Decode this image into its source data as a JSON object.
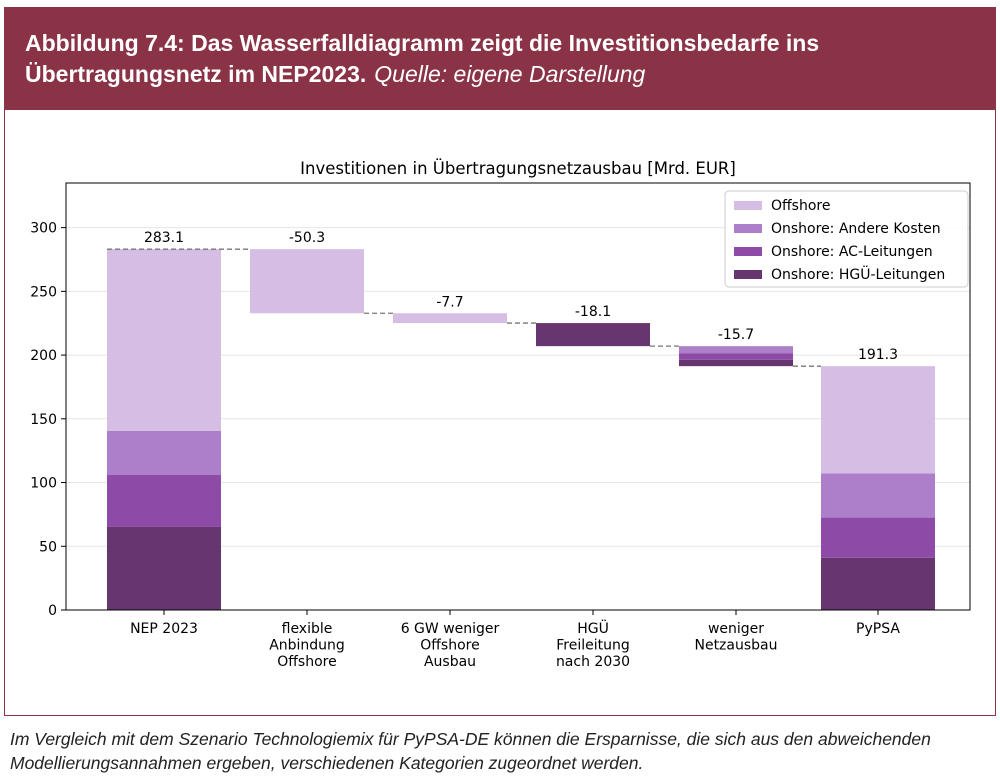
{
  "figure": {
    "title_bold": "Abbildung 7.4: Das Wasserfalldiagramm zeigt die Investitionsbedarfe ins Übertragungsnetz im NEP2023.",
    "source": "Quelle: eigene Darstellung",
    "caption": "Im Vergleich mit dem Szenario Technologiemix für PyPSA-DE können die Ersparnisse, die sich aus den abweichenden Modellierungsannahmen ergeben, verschiedenen Kategorien zugeordnet werden."
  },
  "chart_data": {
    "type": "bar",
    "subtype": "waterfall-stacked",
    "title": "Investitionen in Übertragungsnetzausbau [Mrd. EUR]",
    "xlabel": "",
    "ylabel": "",
    "ylim": [
      0,
      335
    ],
    "yticks": [
      0,
      50,
      100,
      150,
      200,
      250,
      300
    ],
    "grid": true,
    "legend_position": "top-right",
    "categories": [
      [
        "NEP 2023"
      ],
      [
        "flexible",
        "Anbindung",
        "Offshore"
      ],
      [
        "6 GW weniger",
        "Offshore",
        "Ausbau"
      ],
      [
        "HGÜ",
        "Freileitung",
        "nach 2030"
      ],
      [
        "weniger",
        "Netzausbau"
      ],
      [
        "PyPSA"
      ]
    ],
    "series": [
      {
        "name": "Onshore: HGÜ-Leitungen",
        "color": "#673670",
        "values": [
          65.4,
          0,
          0,
          18.1,
          5.0,
          41.0
        ]
      },
      {
        "name": "Onshore: AC-Leitungen",
        "color": "#8d4aa6",
        "values": [
          40.5,
          0,
          0,
          0,
          5.2,
          31.5
        ]
      },
      {
        "name": "Onshore: Andere Kosten",
        "color": "#ad7ec9",
        "values": [
          34.7,
          0,
          0,
          0,
          5.5,
          34.7
        ]
      },
      {
        "name": "Offshore",
        "color": "#d6bde3",
        "values": [
          142.5,
          50.3,
          7.7,
          0,
          0,
          84.1
        ]
      }
    ],
    "bar_bases": [
      0,
      232.8,
      225.1,
      207.0,
      191.3,
      0
    ],
    "bar_labels": [
      "283.1",
      "-50.3",
      "-7.7",
      "-18.1",
      "-15.7",
      "191.3"
    ],
    "bar_tops": [
      283.1,
      283.1,
      232.8,
      225.1,
      207.0,
      191.3
    ],
    "connectors": [
      283.1,
      232.8,
      225.1,
      207.0,
      191.3
    ],
    "legend_order": [
      "Offshore",
      "Onshore: Andere Kosten",
      "Onshore: AC-Leitungen",
      "Onshore: HGÜ-Leitungen"
    ]
  }
}
